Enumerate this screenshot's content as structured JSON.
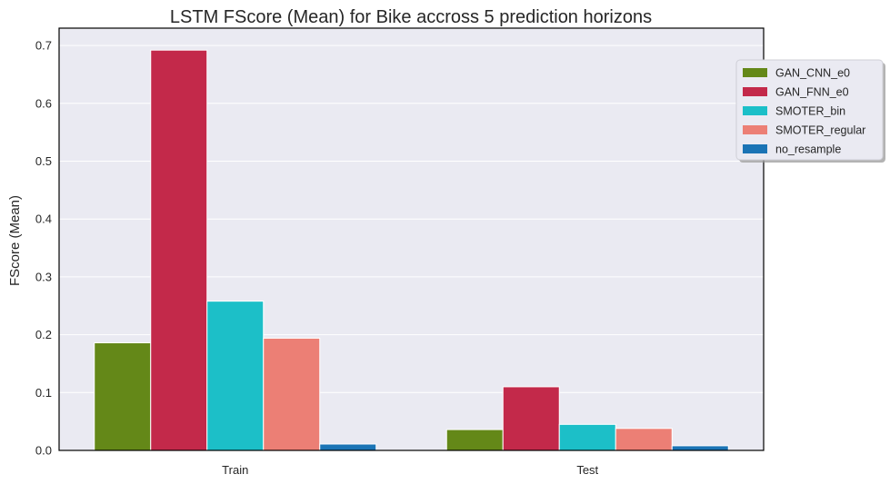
{
  "chart_data": {
    "type": "bar",
    "title": "LSTM FScore (Mean) for Bike accross 5 prediction horizons",
    "xlabel": "",
    "ylabel": "FScore (Mean)",
    "categories": [
      "Train",
      "Test"
    ],
    "ylim": [
      0,
      0.73
    ],
    "yticks": [
      0.0,
      0.1,
      0.2,
      0.3,
      0.4,
      0.5,
      0.6,
      0.7
    ],
    "ytick_labels": [
      "0.0",
      "0.1",
      "0.2",
      "0.3",
      "0.4",
      "0.5",
      "0.6",
      "0.7"
    ],
    "grid": true,
    "legend_position": "top-right, outside plot",
    "series": [
      {
        "name": "GAN_CNN_e0",
        "color": "#648818",
        "values": [
          0.186,
          0.036
        ]
      },
      {
        "name": "GAN_FNN_e0",
        "color": "#c3294a",
        "values": [
          0.692,
          0.11
        ]
      },
      {
        "name": "SMOTER_bin",
        "color": "#1cbfc8",
        "values": [
          0.258,
          0.045
        ]
      },
      {
        "name": "SMOTER_regular",
        "color": "#ec7f75",
        "values": [
          0.194,
          0.038
        ]
      },
      {
        "name": "no_resample",
        "color": "#1b74b5",
        "values": [
          0.011,
          0.008
        ]
      }
    ]
  }
}
